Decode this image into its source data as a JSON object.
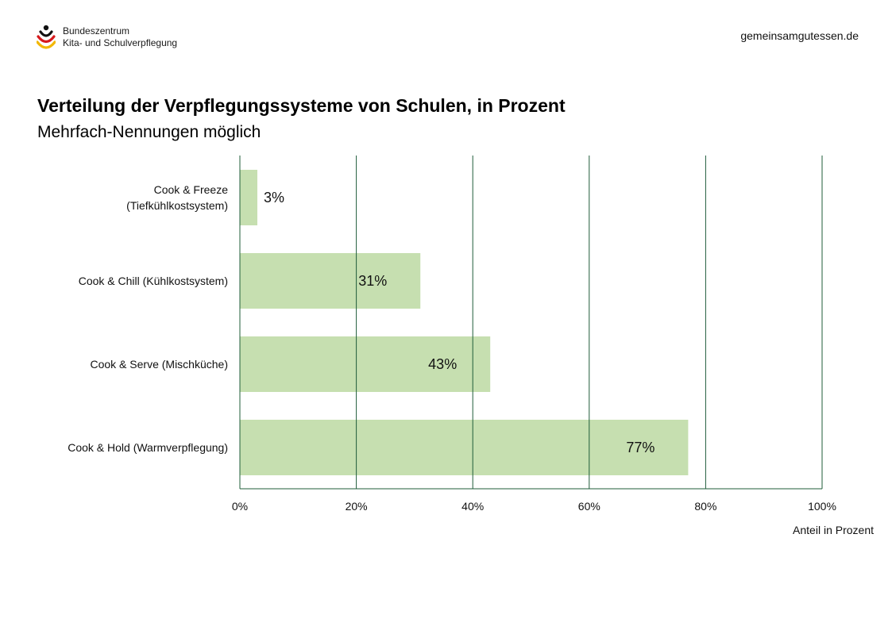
{
  "header": {
    "logo_line1": "Bundeszentrum",
    "logo_line2": "Kita- und Schulverpflegung",
    "website": "gemeinsamgutessen.de"
  },
  "colors": {
    "bar": "#c6dfb0",
    "grid": "#1f5c3a",
    "logo_black": "#111111",
    "logo_red": "#d7191c",
    "logo_gold": "#f2b705"
  },
  "chart_data": {
    "type": "bar",
    "orientation": "horizontal",
    "title": "Verteilung der Verpflegungssysteme von Schulen, in Prozent",
    "subtitle": "Mehrfach-Nennungen möglich",
    "categories": [
      [
        "Cook & Freeze",
        "(Tiefkühlkostsystem)"
      ],
      [
        "Cook & Chill (Kühlkostsystem)"
      ],
      [
        "Cook & Serve (Mischküche)"
      ],
      [
        "Cook & Hold (Warmverpflegung)"
      ]
    ],
    "values": [
      3,
      31,
      43,
      77
    ],
    "data_labels": [
      "3%",
      "31%",
      "43%",
      "77%"
    ],
    "xlabel": "Anteil in Prozent",
    "xlim": [
      0,
      100
    ],
    "x_ticks": [
      0,
      20,
      40,
      60,
      80,
      100
    ],
    "x_tick_labels": [
      "0%",
      "20%",
      "40%",
      "60%",
      "80%",
      "100%"
    ],
    "grid": "vertical",
    "legend": "none"
  }
}
